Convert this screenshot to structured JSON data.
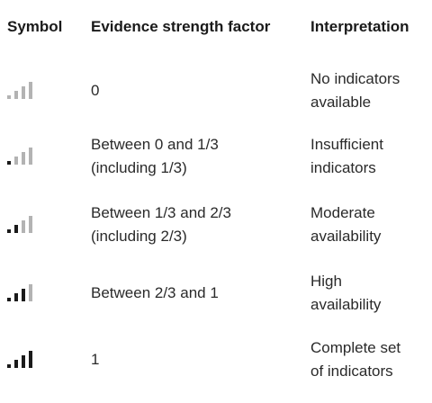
{
  "header": {
    "symbol": "Symbol",
    "factor": "Evidence strength factor",
    "interpretation": "Interpretation"
  },
  "colors": {
    "bar_filled": "#1a1a1a",
    "bar_empty": "#b3b3b3"
  },
  "rows": [
    {
      "symbol_icon": "signal-strength-0-of-4-icon",
      "filled_bars": 0,
      "factor": "0",
      "interpretation": "No indicators\navailable"
    },
    {
      "symbol_icon": "signal-strength-1-of-4-icon",
      "filled_bars": 1,
      "factor": "Between 0 and 1/3\n(including 1/3)",
      "interpretation": "Insufficient\nindicators"
    },
    {
      "symbol_icon": "signal-strength-2-of-4-icon",
      "filled_bars": 2,
      "factor": "Between 1/3 and 2/3\n(including 2/3)",
      "interpretation": "Moderate\navailability"
    },
    {
      "symbol_icon": "signal-strength-3-of-4-icon",
      "filled_bars": 3,
      "factor": "Between 2/3 and 1",
      "interpretation": "High\navailability"
    },
    {
      "symbol_icon": "signal-strength-4-of-4-icon",
      "filled_bars": 4,
      "factor": "1",
      "interpretation": "Complete set\nof indicators"
    }
  ]
}
